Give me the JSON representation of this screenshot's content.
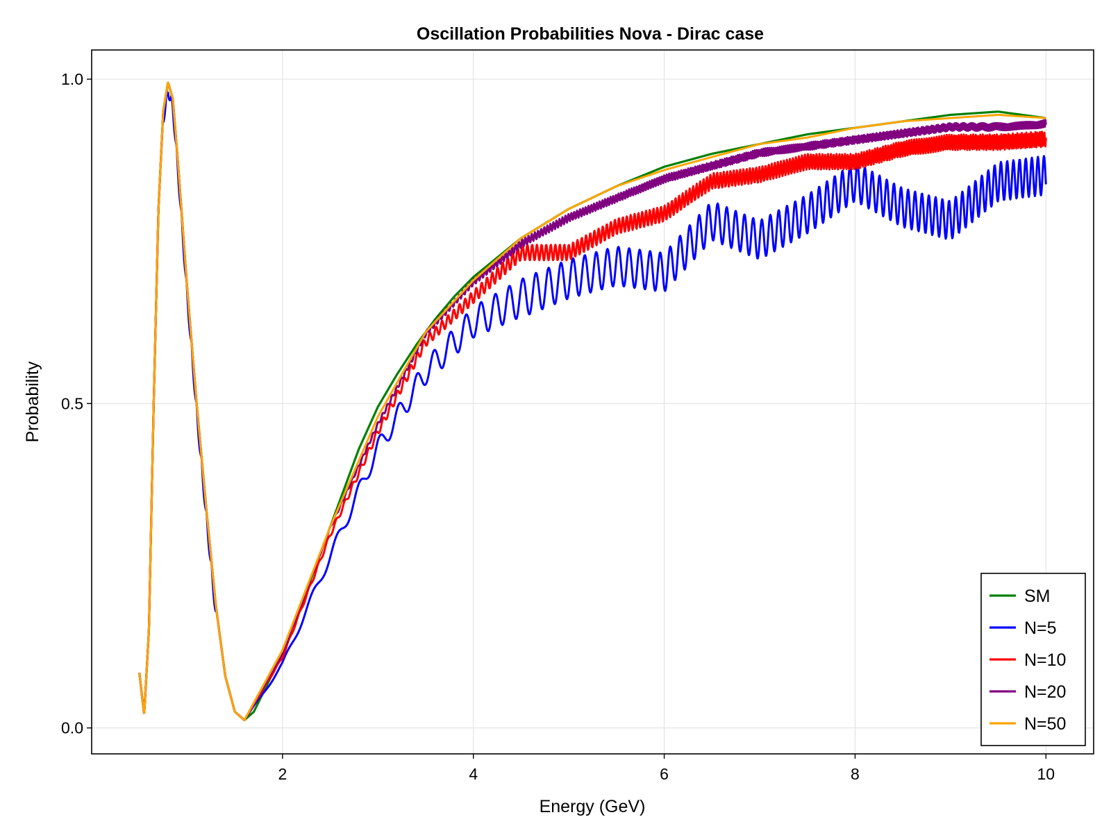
{
  "chart_data": {
    "type": "line",
    "title": "Oscillation Probabilities Nova - Dirac case",
    "xlabel": "Energy (GeV)",
    "ylabel": "Probability",
    "xlim": [
      0.0,
      10.5
    ],
    "ylim": [
      -0.04,
      1.045
    ],
    "xticks": [
      2,
      4,
      6,
      8,
      10
    ],
    "xtick_labels": [
      "2",
      "4",
      "6",
      "8",
      "10"
    ],
    "yticks": [
      0.0,
      0.5,
      1.0
    ],
    "ytick_labels": [
      "0.0",
      "0.5",
      "1.0"
    ],
    "grid": true,
    "legend_position": "bottom-right",
    "x_range": [
      0.5,
      10.0
    ],
    "series": [
      {
        "name": "SM",
        "color": "#008000",
        "values": [
          [
            0.5,
            0.085
          ],
          [
            0.55,
            0.02
          ],
          [
            0.6,
            0.15
          ],
          [
            0.65,
            0.5
          ],
          [
            0.7,
            0.8
          ],
          [
            0.75,
            0.95
          ],
          [
            0.8,
            0.995
          ],
          [
            0.85,
            0.97
          ],
          [
            0.9,
            0.88
          ],
          [
            1.0,
            0.68
          ],
          [
            1.1,
            0.5
          ],
          [
            1.2,
            0.34
          ],
          [
            1.3,
            0.19
          ],
          [
            1.4,
            0.08
          ],
          [
            1.5,
            0.025
          ],
          [
            1.6,
            0.012
          ],
          [
            1.7,
            0.025
          ],
          [
            1.8,
            0.055
          ],
          [
            1.9,
            0.085
          ],
          [
            2.0,
            0.12
          ],
          [
            2.2,
            0.19
          ],
          [
            2.4,
            0.27
          ],
          [
            2.6,
            0.35
          ],
          [
            2.8,
            0.43
          ],
          [
            3.0,
            0.495
          ],
          [
            3.2,
            0.545
          ],
          [
            3.4,
            0.59
          ],
          [
            3.6,
            0.63
          ],
          [
            3.8,
            0.665
          ],
          [
            4.0,
            0.695
          ],
          [
            4.5,
            0.755
          ],
          [
            5.0,
            0.8
          ],
          [
            5.5,
            0.835
          ],
          [
            6.0,
            0.865
          ],
          [
            6.5,
            0.885
          ],
          [
            7.0,
            0.9
          ],
          [
            7.5,
            0.915
          ],
          [
            8.0,
            0.925
          ],
          [
            8.5,
            0.935
          ],
          [
            9.0,
            0.945
          ],
          [
            9.5,
            0.95
          ],
          [
            10.0,
            0.94
          ]
        ]
      },
      {
        "name": "N=5",
        "color": "#0000ff",
        "values": [
          [
            1.6,
            0.012
          ],
          [
            2.0,
            0.1
          ],
          [
            2.5,
            0.27
          ],
          [
            3.0,
            0.44
          ],
          [
            3.5,
            0.56
          ],
          [
            4.0,
            0.64
          ],
          [
            4.5,
            0.68
          ],
          [
            5.0,
            0.71
          ],
          [
            5.5,
            0.73
          ],
          [
            6.0,
            0.72
          ],
          [
            6.5,
            0.8
          ],
          [
            7.0,
            0.77
          ],
          [
            7.5,
            0.81
          ],
          [
            8.0,
            0.86
          ],
          [
            8.5,
            0.82
          ],
          [
            9.0,
            0.8
          ],
          [
            9.5,
            0.86
          ],
          [
            10.0,
            0.87
          ]
        ]
      },
      {
        "name": "N=10",
        "color": "#ff0000",
        "values": [
          [
            1.6,
            0.012
          ],
          [
            2.0,
            0.11
          ],
          [
            2.5,
            0.3
          ],
          [
            3.0,
            0.46
          ],
          [
            3.5,
            0.6
          ],
          [
            4.0,
            0.67
          ],
          [
            4.5,
            0.74
          ],
          [
            5.0,
            0.74
          ],
          [
            5.5,
            0.78
          ],
          [
            6.0,
            0.8
          ],
          [
            6.5,
            0.85
          ],
          [
            7.0,
            0.86
          ],
          [
            7.5,
            0.88
          ],
          [
            8.0,
            0.88
          ],
          [
            8.5,
            0.9
          ],
          [
            9.0,
            0.91
          ],
          [
            9.5,
            0.91
          ],
          [
            10.0,
            0.915
          ]
        ]
      },
      {
        "name": "N=20",
        "color": "#800080",
        "values": [
          [
            1.6,
            0.012
          ],
          [
            2.0,
            0.115
          ],
          [
            2.5,
            0.31
          ],
          [
            3.0,
            0.47
          ],
          [
            3.5,
            0.61
          ],
          [
            4.0,
            0.69
          ],
          [
            4.5,
            0.75
          ],
          [
            5.0,
            0.79
          ],
          [
            5.5,
            0.82
          ],
          [
            6.0,
            0.85
          ],
          [
            6.5,
            0.87
          ],
          [
            7.0,
            0.89
          ],
          [
            7.5,
            0.9
          ],
          [
            8.0,
            0.91
          ],
          [
            8.5,
            0.92
          ],
          [
            9.0,
            0.93
          ],
          [
            9.5,
            0.93
          ],
          [
            10.0,
            0.935
          ]
        ]
      },
      {
        "name": "N=50",
        "color": "#ffa500",
        "values": [
          [
            1.6,
            0.012
          ],
          [
            2.0,
            0.12
          ],
          [
            2.5,
            0.31
          ],
          [
            3.0,
            0.48
          ],
          [
            3.5,
            0.61
          ],
          [
            4.0,
            0.69
          ],
          [
            4.5,
            0.755
          ],
          [
            5.0,
            0.8
          ],
          [
            5.5,
            0.835
          ],
          [
            6.0,
            0.86
          ],
          [
            6.5,
            0.88
          ],
          [
            7.0,
            0.9
          ],
          [
            7.5,
            0.91
          ],
          [
            8.0,
            0.925
          ],
          [
            8.5,
            0.935
          ],
          [
            9.0,
            0.94
          ],
          [
            9.5,
            0.945
          ],
          [
            10.0,
            0.94
          ]
        ]
      }
    ]
  }
}
